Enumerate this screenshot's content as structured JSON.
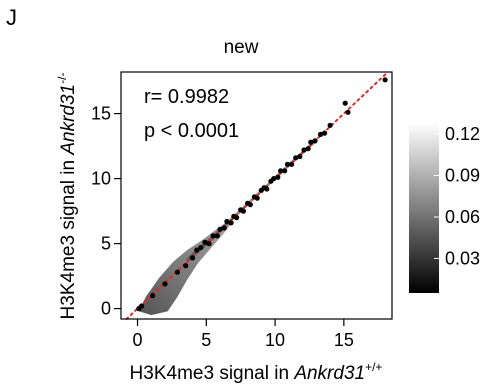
{
  "panel_letter": "J",
  "chart_data": {
    "type": "scatter",
    "title": "new",
    "xlabel": {
      "prefix": "H3K4me3 signal in ",
      "gene": "Ankrd31",
      "superscript": "+/+"
    },
    "ylabel": {
      "prefix": "H3K4me3 signal in ",
      "gene": "Ankrd31",
      "superscript": "-/-"
    },
    "xlim": [
      -1.2,
      18.5
    ],
    "ylim": [
      -0.8,
      18.2
    ],
    "xticks": [
      0,
      5,
      10,
      15
    ],
    "yticks": [
      0,
      5,
      10,
      15
    ],
    "xtick_labels": [
      "0",
      "5",
      "10",
      "15"
    ],
    "ytick_labels": [
      "0",
      "5",
      "10",
      "15"
    ],
    "annotations": [
      "r= 0.9982",
      "p < 0.0001"
    ],
    "reference_line": {
      "slope": 1,
      "intercept": 0,
      "color": "#e8251f",
      "style": "dotted"
    },
    "colorbar": {
      "ticks": [
        0.03,
        0.06,
        0.09,
        0.12
      ],
      "tick_labels": [
        "0.03",
        "0.06",
        "0.09",
        "0.12"
      ],
      "min": 0.005,
      "max": 0.128,
      "gradient": [
        "#000000",
        "#ffffff"
      ]
    },
    "point_color": "#000000",
    "points": [
      [
        0.1,
        0.0
      ],
      [
        0.3,
        0.2
      ],
      [
        1.1,
        1.0
      ],
      [
        2.0,
        1.9
      ],
      [
        2.9,
        2.8
      ],
      [
        3.5,
        3.3
      ],
      [
        4.0,
        3.9
      ],
      [
        4.3,
        4.5
      ],
      [
        4.6,
        4.7
      ],
      [
        4.9,
        5.1
      ],
      [
        5.2,
        5.0
      ],
      [
        5.5,
        5.6
      ],
      [
        5.8,
        5.6
      ],
      [
        6.0,
        6.1
      ],
      [
        6.3,
        6.2
      ],
      [
        6.5,
        6.7
      ],
      [
        6.8,
        6.6
      ],
      [
        7.0,
        7.1
      ],
      [
        7.2,
        7.0
      ],
      [
        7.5,
        7.6
      ],
      [
        7.7,
        7.5
      ],
      [
        8.0,
        8.1
      ],
      [
        8.2,
        8.0
      ],
      [
        8.5,
        8.6
      ],
      [
        8.7,
        8.5
      ],
      [
        9.0,
        9.1
      ],
      [
        9.2,
        9.3
      ],
      [
        9.4,
        9.2
      ],
      [
        9.7,
        9.8
      ],
      [
        9.9,
        10.0
      ],
      [
        10.2,
        10.1
      ],
      [
        10.4,
        10.6
      ],
      [
        10.7,
        10.6
      ],
      [
        10.9,
        11.1
      ],
      [
        11.2,
        11.1
      ],
      [
        11.5,
        11.6
      ],
      [
        11.8,
        11.7
      ],
      [
        12.1,
        12.2
      ],
      [
        12.4,
        12.3
      ],
      [
        12.6,
        12.8
      ],
      [
        12.9,
        12.9
      ],
      [
        13.3,
        13.4
      ],
      [
        13.6,
        13.5
      ],
      [
        14.0,
        14.1
      ],
      [
        15.1,
        15.8
      ],
      [
        15.3,
        15.1
      ],
      [
        18.0,
        17.6
      ]
    ]
  }
}
